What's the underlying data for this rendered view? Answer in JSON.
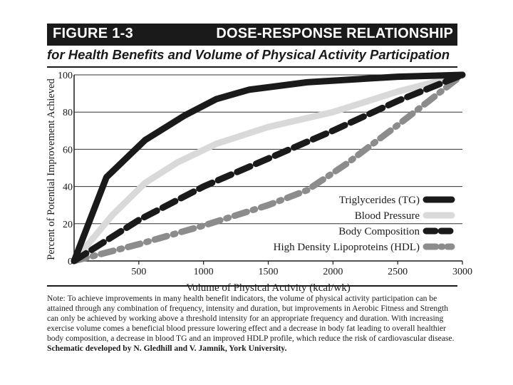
{
  "figure": {
    "label": "FIGURE 1-3",
    "title": "DOSE-RESPONSE RELATIONSHIP",
    "subtitle": "for Health Benefits and Volume of Physical Activity Participation"
  },
  "chart_data": {
    "type": "line",
    "ylabel": "Percent of Potential Improvement Achieved",
    "xlabel": "Volume of Physical Activity (kcal/wk)",
    "xlim": [
      0,
      3000
    ],
    "ylim": [
      0,
      100
    ],
    "x_ticks": [
      0,
      500,
      1000,
      1500,
      2000,
      2500,
      3000
    ],
    "x_tick_labels": [
      "500",
      "1000",
      "1500",
      "2000",
      "2500",
      "3000"
    ],
    "y_ticks": [
      0,
      20,
      40,
      60,
      80,
      100
    ],
    "y_tick_labels": [
      "0",
      "20",
      "40",
      "60",
      "80",
      "100"
    ],
    "x_origin_label": "0",
    "grid": true,
    "series": [
      {
        "name": "Triglycerides (TG)",
        "color": "#1a1a1a",
        "style": "solid",
        "x": [
          0,
          250,
          550,
          850,
          1100,
          1350,
          1800,
          2500,
          3000
        ],
        "y": [
          0,
          45,
          65,
          78,
          87,
          92,
          96,
          99,
          100
        ]
      },
      {
        "name": "Blood Pressure",
        "color": "#d9d9d9",
        "style": "solid",
        "x": [
          0,
          300,
          550,
          800,
          1100,
          1500,
          2000,
          2500,
          3000
        ],
        "y": [
          0,
          25,
          42,
          53,
          63,
          72,
          80,
          91,
          100
        ]
      },
      {
        "name": "Body Composition",
        "color": "#1a1a1a",
        "style": "dashed",
        "x": [
          0,
          500,
          1000,
          1500,
          2000,
          2500,
          3000
        ],
        "y": [
          0,
          22,
          40,
          55,
          70,
          86,
          100
        ]
      },
      {
        "name": "High Density Lipoproteins (HDL)",
        "color": "#8c8c8c",
        "style": "dashdot",
        "x": [
          0,
          500,
          1000,
          1500,
          1800,
          2100,
          2500,
          3000
        ],
        "y": [
          0,
          9,
          19,
          30,
          38,
          52,
          73,
          100
        ]
      }
    ]
  },
  "note": {
    "text": "Note: To achieve improvements in many health benefit indicators, the volume of physical activity participation can be attained through any combination of frequency, intensity and duration, but improvements in Aerobic Fitness and Strength can only be achieved by working above a threshold intensity for an appropriate frequency and duration. With increasing exercise volume comes a beneficial blood pressure lowering effect and a decrease in body fat leading to overall healthier body composition, a decrease in blood TG and an improved HDLP profile, which reduce the risk of cardiovascular disease.",
    "credit": "Schematic developed by N. Gledhill and V. Jamnik, York University."
  }
}
